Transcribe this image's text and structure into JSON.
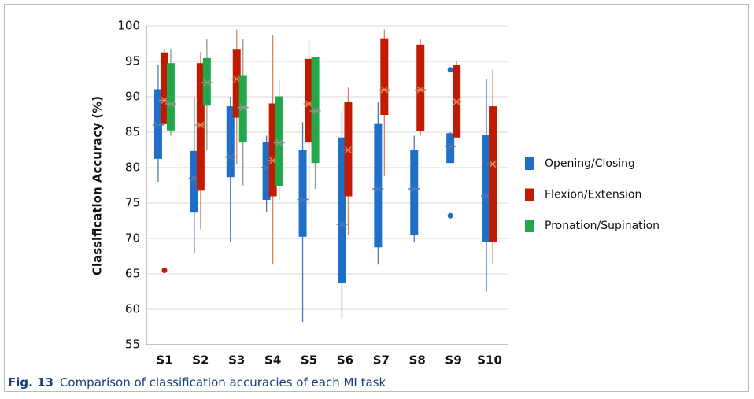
{
  "chart_data": {
    "type": "box",
    "y_label": "Classification Accuracy (%)",
    "caption_label": "Fig. 13",
    "caption": "Comparison of classification accuracies of each MI task",
    "categories": [
      "S1",
      "S2",
      "S3",
      "S4",
      "S5",
      "S6",
      "S7",
      "S8",
      "S9",
      "S10"
    ],
    "ylim": [
      55,
      100
    ],
    "yticks": [
      55,
      60,
      65,
      70,
      75,
      80,
      85,
      90,
      95,
      100
    ],
    "grid": true,
    "series": [
      {
        "name": "Opening/Closing",
        "color": "#1f6fc8",
        "whisker_color": "#4a78b8",
        "min": [
          78,
          68,
          69.5,
          73.7,
          58.2,
          58.7,
          66.3,
          69.4,
          80.7,
          62.5
        ],
        "q1": [
          81.3,
          73.7,
          78.7,
          75.5,
          70.3,
          63.8,
          68.8,
          70.5,
          80.7,
          69.5
        ],
        "median": [
          86,
          78.5,
          81.5,
          80,
          75.5,
          72,
          77,
          77,
          83,
          76
        ],
        "q3": [
          91,
          82.3,
          88.6,
          83.6,
          82.5,
          84.2,
          86.2,
          82.5,
          84.8,
          84.5
        ],
        "max": [
          94.5,
          90,
          90,
          84.5,
          86.4,
          88,
          89.2,
          84.5,
          85,
          92.5
        ],
        "outliers": [
          [],
          [],
          [],
          [],
          [],
          [],
          [],
          [],
          [
            93.8,
            73.2
          ],
          []
        ]
      },
      {
        "name": "Flexion/Extension",
        "color": "#c01a00",
        "whisker_color": "#d9875a",
        "min": [
          86,
          71.3,
          80.5,
          66.3,
          74.5,
          70.5,
          78.8,
          84.5,
          84.3,
          66.3
        ],
        "q1": [
          86.3,
          76.8,
          87.1,
          76,
          83.6,
          76,
          87.5,
          85.2,
          84.3,
          69.6
        ],
        "median": [
          89.5,
          86,
          92.5,
          81,
          89,
          82.5,
          91,
          91,
          89.3,
          80.5
        ],
        "q3": [
          96.2,
          94.7,
          96.7,
          89,
          95.3,
          89.2,
          98.2,
          97.3,
          94.5,
          88.6
        ],
        "max": [
          96.8,
          96.3,
          99.5,
          98.7,
          98.2,
          91.3,
          99.5,
          98.2,
          95,
          93.8
        ],
        "outliers": [
          [
            65.5
          ],
          [],
          [],
          [],
          [],
          [],
          [],
          [],
          [],
          []
        ]
      },
      {
        "name": "Pronation/Supination",
        "color": "#22a84a",
        "whisker_color": "#8a9a8a",
        "min": [
          84.5,
          82.5,
          77.5,
          75.5,
          77,
          null,
          null,
          null,
          null,
          null
        ],
        "q1": [
          85.3,
          88.8,
          83.6,
          77.5,
          80.7,
          null,
          null,
          null,
          null,
          null
        ],
        "median": [
          89,
          92,
          88.5,
          83.5,
          88,
          null,
          null,
          null,
          null,
          null
        ],
        "q3": [
          94.7,
          95.4,
          93,
          90,
          95.5,
          null,
          null,
          null,
          null,
          null
        ],
        "max": [
          96.8,
          98.2,
          98.2,
          92.4,
          95.5,
          null,
          null,
          null,
          null,
          null
        ],
        "outliers": [
          [],
          [],
          [],
          [],
          [],
          [],
          [],
          [],
          [],
          []
        ]
      }
    ]
  }
}
